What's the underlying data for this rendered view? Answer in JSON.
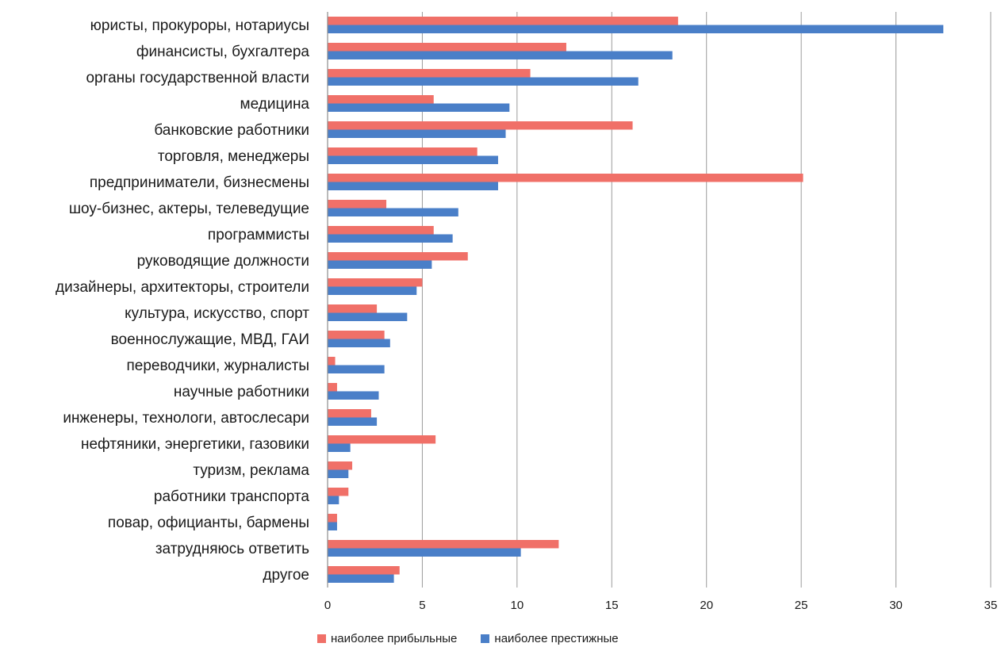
{
  "chart_data": {
    "type": "bar",
    "orientation": "horizontal",
    "categories": [
      "юристы, прокуроры, нотариусы",
      "финансисты, бухгалтера",
      "органы государственной власти",
      "медицина",
      "банковские работники",
      "торговля, менеджеры",
      "предприниматели, бизнесмены",
      "шоу-бизнес, актеры, телеведущие",
      "программисты",
      "руководящие должности",
      "дизайнеры, архитекторы, строители",
      "культура, искусство, спорт",
      "военнослужащие, МВД, ГАИ",
      "переводчики, журналисты",
      "научные работники",
      "инженеры, технологи, автослесари",
      "нефтяники, энергетики, газовики",
      "туризм, реклама",
      "работники транспорта",
      "повар, официанты, бармены",
      "затрудняюсь ответить",
      "другое"
    ],
    "series": [
      {
        "name": "наиболее прибыльные",
        "color": "#f07068",
        "values": [
          18.5,
          12.6,
          10.7,
          5.6,
          16.1,
          7.9,
          25.1,
          3.1,
          5.6,
          7.4,
          5.0,
          2.6,
          3.0,
          0.4,
          0.5,
          2.3,
          5.7,
          1.3,
          1.1,
          0.5,
          12.2,
          3.8
        ]
      },
      {
        "name": "наиболее престижные",
        "color": "#4a7fc8",
        "values": [
          32.5,
          18.2,
          16.4,
          9.6,
          9.4,
          9.0,
          9.0,
          6.9,
          6.6,
          5.5,
          4.7,
          4.2,
          3.3,
          3.0,
          2.7,
          2.6,
          1.2,
          1.1,
          0.6,
          0.5,
          10.2,
          3.5
        ]
      }
    ],
    "xlim": [
      0,
      35
    ],
    "xticks": [
      0,
      5,
      10,
      15,
      20,
      25,
      30,
      35
    ],
    "grid": true,
    "legend_position": "bottom",
    "title": "",
    "xlabel": "",
    "ylabel": ""
  }
}
